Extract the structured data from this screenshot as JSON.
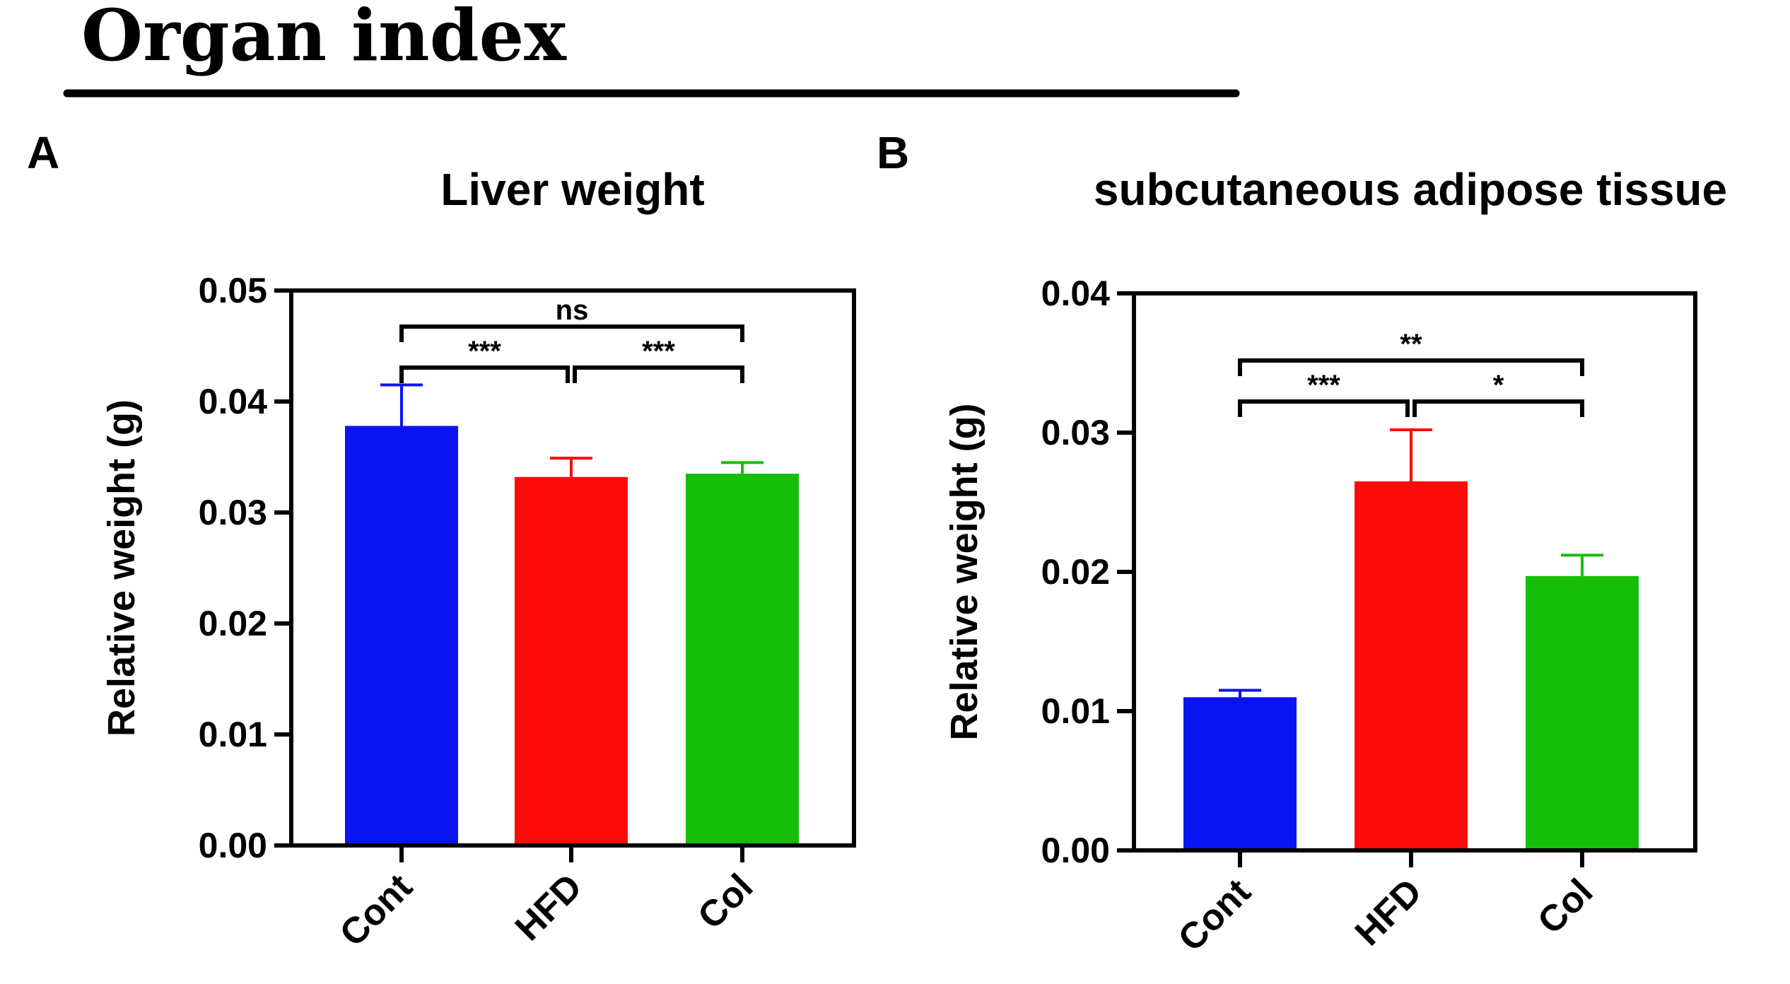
{
  "page_title": "Organ index",
  "colors": {
    "cont": "#0a14f0",
    "hfd": "#ff0a0a",
    "col": "#16be0a",
    "axis": "#000000"
  },
  "chart_data": [
    {
      "panel": "A",
      "type": "bar",
      "title": "Liver weight",
      "xlabel": "",
      "ylabel": "Relative weight (g)",
      "ylim": [
        0,
        0.05
      ],
      "yticks": [
        "0.00",
        "0.01",
        "0.02",
        "0.03",
        "0.04",
        "0.05"
      ],
      "categories": [
        "Cont",
        "HFD",
        "Col"
      ],
      "values": [
        0.0378,
        0.0332,
        0.0335
      ],
      "errors": [
        0.0037,
        0.0017,
        0.001
      ],
      "significance": [
        {
          "from": 0,
          "to": 1,
          "label": "***",
          "level": 0
        },
        {
          "from": 1,
          "to": 2,
          "label": "***",
          "level": 0
        },
        {
          "from": 0,
          "to": 2,
          "label": "ns",
          "level": 1
        }
      ]
    },
    {
      "panel": "B",
      "type": "bar",
      "title": "subcutaneous adipose tissue",
      "xlabel": "",
      "ylabel": "Relative weight  (g)",
      "ylim": [
        0,
        0.04
      ],
      "yticks": [
        "0.00",
        "0.01",
        "0.02",
        "0.03",
        "0.04"
      ],
      "categories": [
        "Cont",
        "HFD",
        "Col"
      ],
      "values": [
        0.011,
        0.0265,
        0.0197
      ],
      "errors": [
        0.0005,
        0.0037,
        0.0015
      ],
      "significance": [
        {
          "from": 0,
          "to": 1,
          "label": "***",
          "level": 0
        },
        {
          "from": 1,
          "to": 2,
          "label": "*",
          "level": 0
        },
        {
          "from": 0,
          "to": 2,
          "label": "**",
          "level": 1
        }
      ]
    }
  ]
}
